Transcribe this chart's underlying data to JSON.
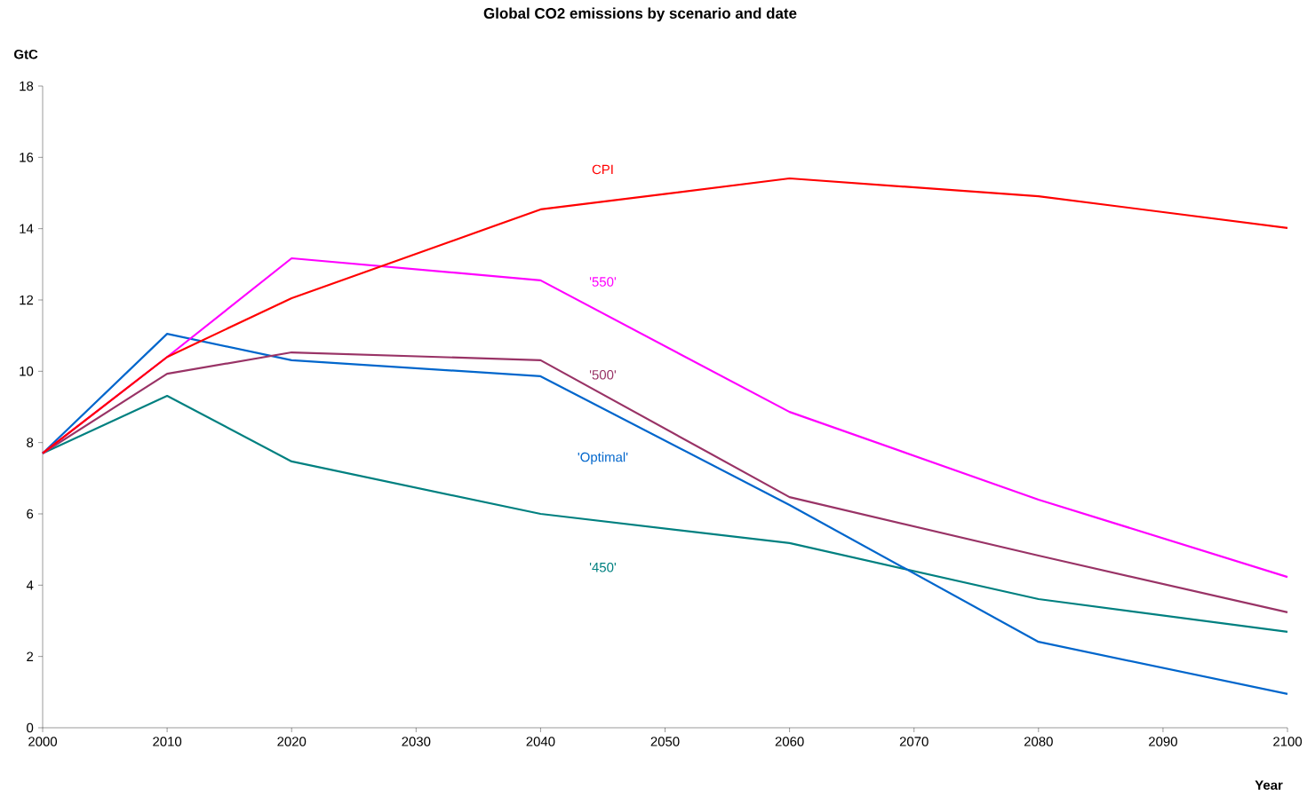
{
  "chart_data": {
    "type": "line",
    "title": "Global CO2 emissions by scenario and date",
    "xlabel": "Year",
    "ylabel": "GtC",
    "x": [
      2000,
      2010,
      2020,
      2040,
      2060,
      2080,
      2100
    ],
    "series": [
      {
        "name": "CPI",
        "color": "#ff0000",
        "values": [
          7.7,
          10.4,
          12.05,
          14.54,
          15.41,
          14.91,
          14.02
        ]
      },
      {
        "name": "'550'",
        "color": "#ff00ff",
        "values": [
          7.7,
          10.4,
          13.17,
          12.55,
          8.86,
          6.4,
          4.23
        ]
      },
      {
        "name": "'500'",
        "color": "#993366",
        "values": [
          7.7,
          9.93,
          10.53,
          10.31,
          6.47,
          4.83,
          3.24
        ]
      },
      {
        "name": "'Optimal'",
        "color": "#0066cc",
        "values": [
          7.7,
          11.05,
          10.31,
          9.86,
          6.25,
          2.41,
          0.95
        ]
      },
      {
        "name": "'450'",
        "color": "#008080",
        "values": [
          7.7,
          9.31,
          7.47,
          6.0,
          5.18,
          3.61,
          2.69
        ]
      }
    ],
    "xlim": [
      2000,
      2100
    ],
    "xticks": [
      2000,
      2010,
      2020,
      2030,
      2040,
      2050,
      2060,
      2070,
      2080,
      2090,
      2100
    ],
    "ylim": [
      0,
      18
    ],
    "yticks": [
      0,
      2,
      4,
      6,
      8,
      10,
      12,
      14,
      16,
      18
    ],
    "grid": false,
    "legend": false,
    "marker": "none",
    "line_style": "solid"
  }
}
